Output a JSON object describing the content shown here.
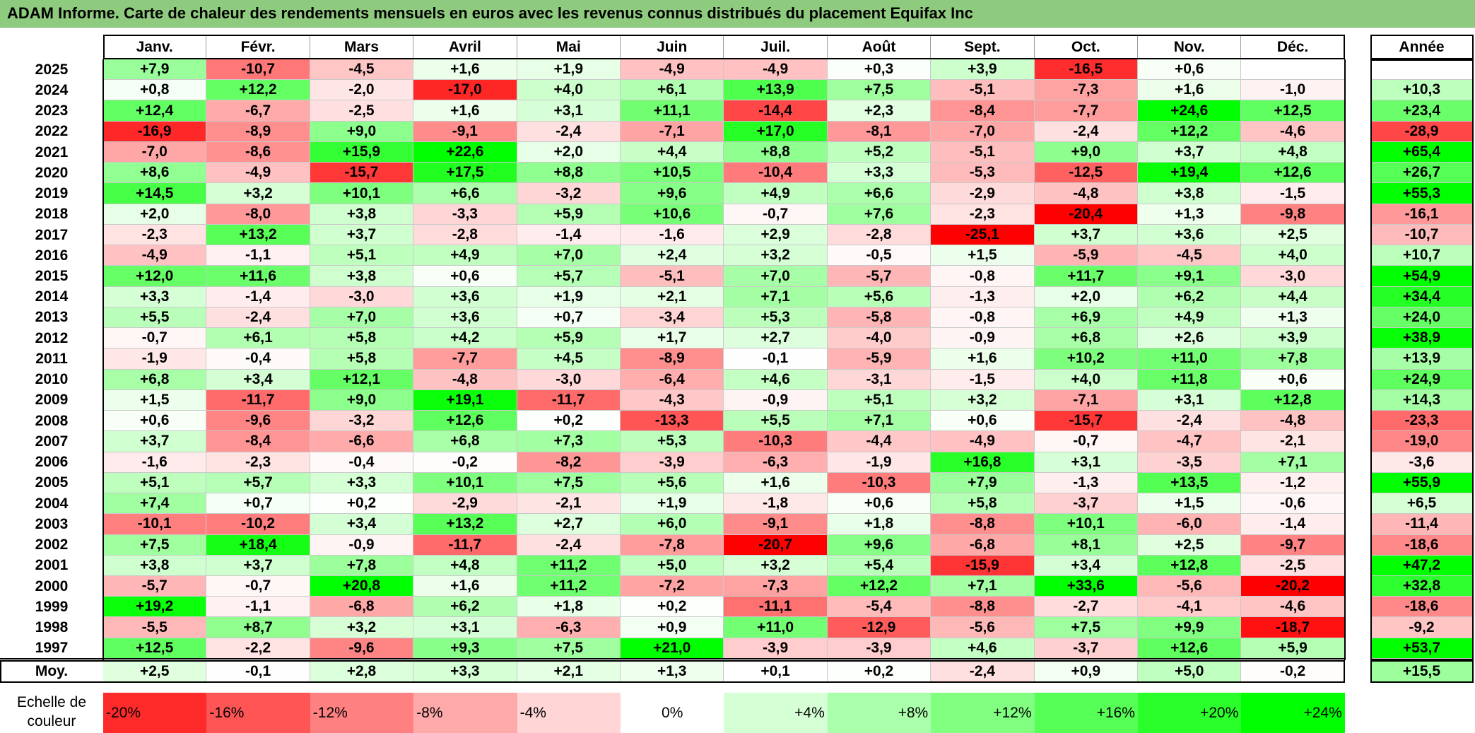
{
  "title": "ADAM Informe. Carte de chaleur des rendements mensuels en euros avec les revenus connus distribués du placement Equifax Inc",
  "scale_label": "Echelle de couleur",
  "colors": {
    "title_bg": "#8fcb7e",
    "neg_max": "#ff0000",
    "zero": "#ffffff",
    "pos_max": "#00ff00"
  },
  "chart_data": {
    "type": "heatmap",
    "title": "ADAM Informe. Carte de chaleur des rendements mensuels en euros avec les revenus connus distribués du placement Equifax Inc",
    "columns": [
      "Janv.",
      "Févr.",
      "Mars",
      "Avril",
      "Mai",
      "Juin",
      "Juil.",
      "Août",
      "Sept.",
      "Oct.",
      "Nov.",
      "Déc."
    ],
    "annual_header": "Année",
    "rows": [
      {
        "year": "2025",
        "values": [
          "+7,9",
          "-10,7",
          "-4,5",
          "+1,6",
          "+1,9",
          "-4,9",
          "-4,9",
          "+0,3",
          "+3,9",
          "-16,5",
          "+0,6",
          ""
        ],
        "annual": ""
      },
      {
        "year": "2024",
        "values": [
          "+0,8",
          "+12,2",
          "-2,0",
          "-17,0",
          "+4,0",
          "+6,1",
          "+13,9",
          "+7,5",
          "-5,1",
          "-7,3",
          "+1,6",
          "-1,0"
        ],
        "annual": "+10,3"
      },
      {
        "year": "2023",
        "values": [
          "+12,4",
          "-6,7",
          "-2,5",
          "+1,6",
          "+3,1",
          "+11,1",
          "-14,4",
          "+2,3",
          "-8,4",
          "-7,7",
          "+24,6",
          "+12,5"
        ],
        "annual": "+23,4"
      },
      {
        "year": "2022",
        "values": [
          "-16,9",
          "-8,9",
          "+9,0",
          "-9,1",
          "-2,4",
          "-7,1",
          "+17,0",
          "-8,1",
          "-7,0",
          "-2,4",
          "+12,2",
          "-4,6"
        ],
        "annual": "-28,9"
      },
      {
        "year": "2021",
        "values": [
          "-7,0",
          "-8,6",
          "+15,9",
          "+22,6",
          "+2,0",
          "+4,4",
          "+8,8",
          "+5,2",
          "-5,1",
          "+9,0",
          "+3,7",
          "+4,8"
        ],
        "annual": "+65,4"
      },
      {
        "year": "2020",
        "values": [
          "+8,6",
          "-4,9",
          "-15,7",
          "+17,5",
          "+8,8",
          "+10,5",
          "-10,4",
          "+3,3",
          "-5,3",
          "-12,5",
          "+19,4",
          "+12,6"
        ],
        "annual": "+26,7"
      },
      {
        "year": "2019",
        "values": [
          "+14,5",
          "+3,2",
          "+10,1",
          "+6,6",
          "-3,2",
          "+9,6",
          "+4,9",
          "+6,6",
          "-2,9",
          "-4,8",
          "+3,8",
          "-1,5"
        ],
        "annual": "+55,3"
      },
      {
        "year": "2018",
        "values": [
          "+2,0",
          "-8,0",
          "+3,8",
          "-3,3",
          "+5,9",
          "+10,6",
          "-0,7",
          "+7,6",
          "-2,3",
          "-20,4",
          "+1,3",
          "-9,8"
        ],
        "annual": "-16,1"
      },
      {
        "year": "2017",
        "values": [
          "-2,3",
          "+13,2",
          "+3,7",
          "-2,8",
          "-1,4",
          "-1,6",
          "+2,9",
          "-2,8",
          "-25,1",
          "+3,7",
          "+3,6",
          "+2,5"
        ],
        "annual": "-10,7"
      },
      {
        "year": "2016",
        "values": [
          "-4,9",
          "-1,1",
          "+5,1",
          "+4,9",
          "+7,0",
          "+2,4",
          "+3,2",
          "-0,5",
          "+1,5",
          "-5,9",
          "-4,5",
          "+4,0"
        ],
        "annual": "+10,7"
      },
      {
        "year": "2015",
        "values": [
          "+12,0",
          "+11,6",
          "+3,8",
          "+0,6",
          "+5,7",
          "-5,1",
          "+7,0",
          "-5,7",
          "-0,8",
          "+11,7",
          "+9,1",
          "-3,0"
        ],
        "annual": "+54,9"
      },
      {
        "year": "2014",
        "values": [
          "+3,3",
          "-1,4",
          "-3,0",
          "+3,6",
          "+1,9",
          "+2,1",
          "+7,1",
          "+5,6",
          "-1,3",
          "+2,0",
          "+6,2",
          "+4,4"
        ],
        "annual": "+34,4"
      },
      {
        "year": "2013",
        "values": [
          "+5,5",
          "-2,4",
          "+7,0",
          "+3,6",
          "+0,7",
          "-3,4",
          "+5,3",
          "-5,8",
          "-0,8",
          "+6,9",
          "+4,9",
          "+1,3"
        ],
        "annual": "+24,0"
      },
      {
        "year": "2012",
        "values": [
          "-0,7",
          "+6,1",
          "+5,8",
          "+4,2",
          "+5,9",
          "+1,7",
          "+2,7",
          "-4,0",
          "-0,9",
          "+6,8",
          "+2,6",
          "+3,9"
        ],
        "annual": "+38,9"
      },
      {
        "year": "2011",
        "values": [
          "-1,9",
          "-0,4",
          "+5,8",
          "-7,7",
          "+4,5",
          "-8,9",
          "-0,1",
          "-5,9",
          "+1,6",
          "+10,2",
          "+11,0",
          "+7,8"
        ],
        "annual": "+13,9"
      },
      {
        "year": "2010",
        "values": [
          "+6,8",
          "+3,4",
          "+12,1",
          "-4,8",
          "-3,0",
          "-6,4",
          "+4,6",
          "-3,1",
          "-1,5",
          "+4,0",
          "+11,8",
          "+0,6"
        ],
        "annual": "+24,9"
      },
      {
        "year": "2009",
        "values": [
          "+1,5",
          "-11,7",
          "+9,0",
          "+19,1",
          "-11,7",
          "-4,3",
          "-0,9",
          "+5,1",
          "+3,2",
          "-7,1",
          "+3,1",
          "+12,8"
        ],
        "annual": "+14,3"
      },
      {
        "year": "2008",
        "values": [
          "+0,6",
          "-9,6",
          "-3,2",
          "+12,6",
          "+0,2",
          "-13,3",
          "+5,5",
          "+7,1",
          "+0,6",
          "-15,7",
          "-2,4",
          "-4,8"
        ],
        "annual": "-23,3"
      },
      {
        "year": "2007",
        "values": [
          "+3,7",
          "-8,4",
          "-6,6",
          "+6,8",
          "+7,3",
          "+5,3",
          "-10,3",
          "-4,4",
          "-4,9",
          "-0,7",
          "-4,7",
          "-2,1"
        ],
        "annual": "-19,0"
      },
      {
        "year": "2006",
        "values": [
          "-1,6",
          "-2,3",
          "-0,4",
          "-0,2",
          "-8,2",
          "-3,9",
          "-6,3",
          "-1,9",
          "+16,8",
          "+3,1",
          "-3,5",
          "+7,1"
        ],
        "annual": "-3,6"
      },
      {
        "year": "2005",
        "values": [
          "+5,1",
          "+5,7",
          "+3,3",
          "+10,1",
          "+7,5",
          "+5,6",
          "+1,6",
          "-10,3",
          "+7,9",
          "-1,3",
          "+13,5",
          "-1,2"
        ],
        "annual": "+55,9"
      },
      {
        "year": "2004",
        "values": [
          "+7,4",
          "+0,7",
          "+0,2",
          "-2,9",
          "-2,1",
          "+1,9",
          "-1,8",
          "+0,6",
          "+5,8",
          "-3,7",
          "+1,5",
          "-0,6"
        ],
        "annual": "+6,5"
      },
      {
        "year": "2003",
        "values": [
          "-10,1",
          "-10,2",
          "+3,4",
          "+13,2",
          "+2,7",
          "+6,0",
          "-9,1",
          "+1,8",
          "-8,8",
          "+10,1",
          "-6,0",
          "-1,4"
        ],
        "annual": "-11,4"
      },
      {
        "year": "2002",
        "values": [
          "+7,5",
          "+18,4",
          "-0,9",
          "-11,7",
          "-2,4",
          "-7,8",
          "-20,7",
          "+9,6",
          "-6,8",
          "+8,1",
          "+2,5",
          "-9,7"
        ],
        "annual": "-18,6"
      },
      {
        "year": "2001",
        "values": [
          "+3,8",
          "+3,7",
          "+7,8",
          "+4,8",
          "+11,2",
          "+5,0",
          "+3,2",
          "+5,4",
          "-15,9",
          "+3,4",
          "+12,8",
          "-2,5"
        ],
        "annual": "+47,2"
      },
      {
        "year": "2000",
        "values": [
          "-5,7",
          "-0,7",
          "+20,8",
          "+1,6",
          "+11,2",
          "-7,2",
          "-7,3",
          "+12,2",
          "+7,1",
          "+33,6",
          "-5,6",
          "-20,2"
        ],
        "annual": "+32,8"
      },
      {
        "year": "1999",
        "values": [
          "+19,2",
          "-1,1",
          "-6,8",
          "+6,2",
          "+1,8",
          "+0,2",
          "-11,1",
          "-5,4",
          "-8,8",
          "-2,7",
          "-4,1",
          "-4,6"
        ],
        "annual": "-18,6"
      },
      {
        "year": "1998",
        "values": [
          "-5,5",
          "+8,7",
          "+3,2",
          "+3,1",
          "-6,3",
          "+0,9",
          "+11,0",
          "-12,9",
          "-5,6",
          "+7,5",
          "+9,9",
          "-18,7"
        ],
        "annual": "-9,2"
      },
      {
        "year": "1997",
        "values": [
          "+12,5",
          "-2,2",
          "-9,6",
          "+9,3",
          "+7,5",
          "+21,0",
          "-3,9",
          "-3,9",
          "+4,6",
          "-3,7",
          "+12,6",
          "+5,9"
        ],
        "annual": "+53,7"
      }
    ],
    "average": {
      "label": "Moy.",
      "values": [
        "+2,5",
        "-0,1",
        "+2,8",
        "+3,3",
        "+2,1",
        "+1,3",
        "+0,1",
        "+0,2",
        "-2,4",
        "+0,9",
        "+5,0",
        "-0,2"
      ],
      "annual": "+15,5"
    },
    "color_scale": [
      {
        "label": "-20%",
        "value": -20
      },
      {
        "label": "-16%",
        "value": -16
      },
      {
        "label": "-12%",
        "value": -12
      },
      {
        "label": "-8%",
        "value": -8
      },
      {
        "label": "-4%",
        "value": -4
      },
      {
        "label": "0%",
        "value": 0
      },
      {
        "label": "+4%",
        "value": 4
      },
      {
        "label": "+8%",
        "value": 8
      },
      {
        "label": "+12%",
        "value": 12
      },
      {
        "label": "+16%",
        "value": 16
      },
      {
        "label": "+20%",
        "value": 20
      },
      {
        "label": "+24%",
        "value": 24
      }
    ]
  }
}
